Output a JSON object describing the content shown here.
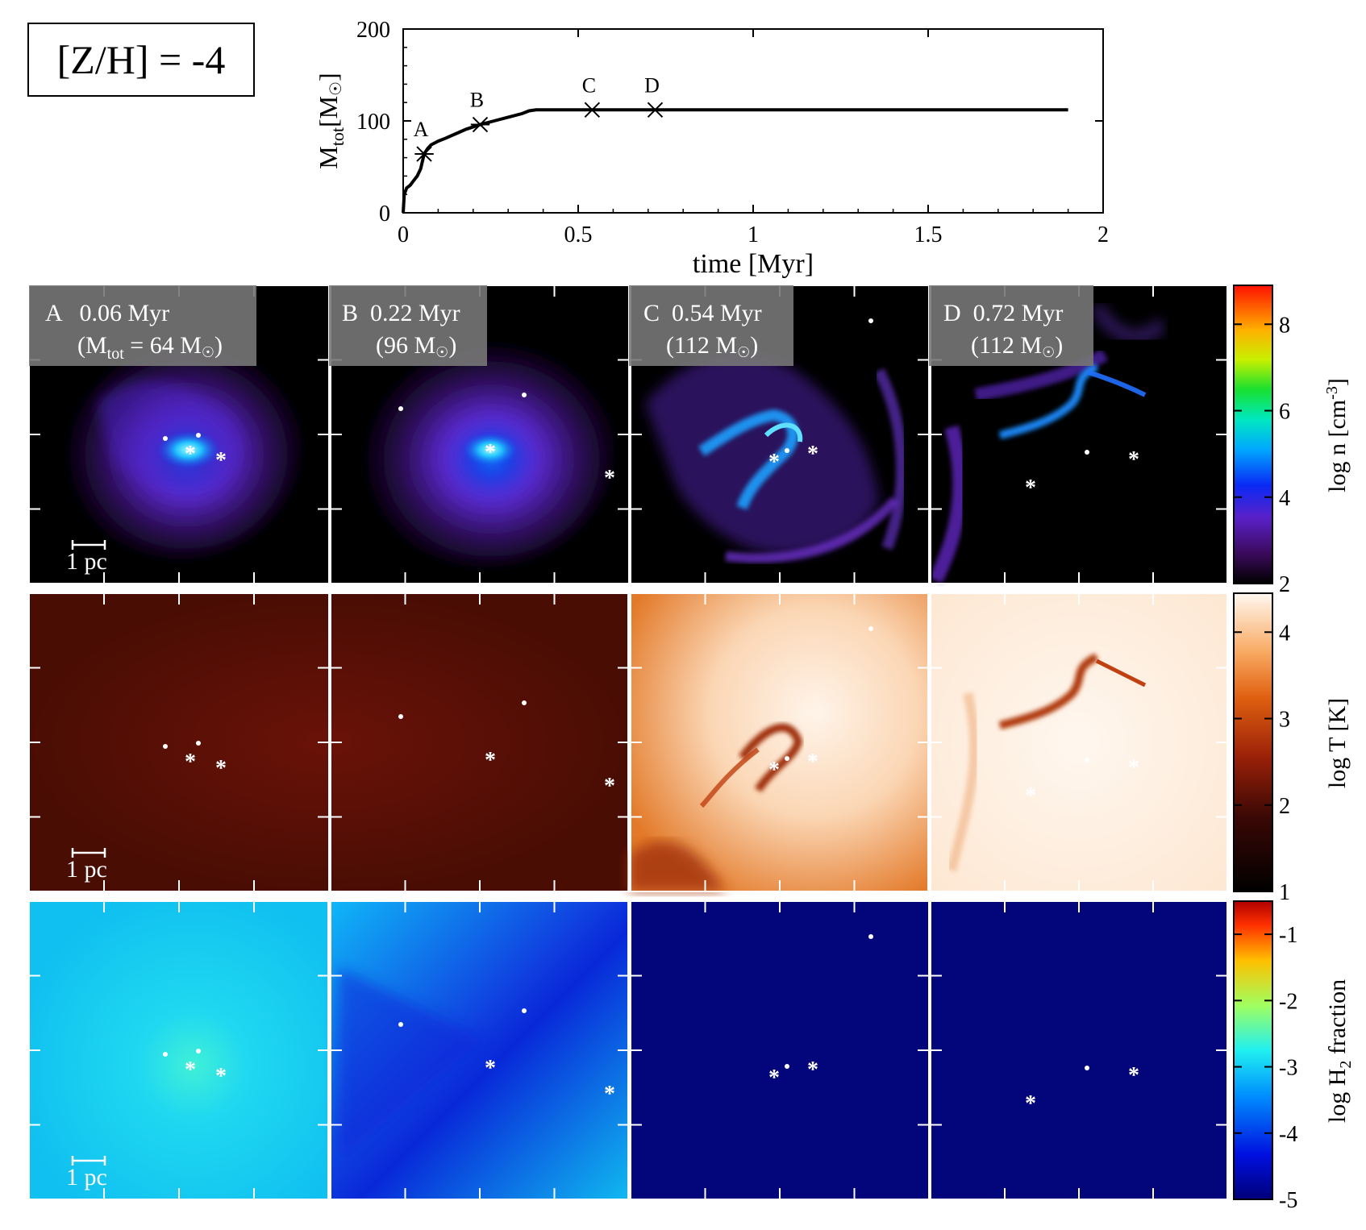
{
  "metallicity_label": "[Z/H] = -4",
  "chart_data": {
    "type": "line",
    "xlabel": "time [Myr]",
    "ylabel_main": "M",
    "ylabel_sub": "tot",
    "ylabel_unit": "[M",
    "ylabel_unit_close": "]",
    "xlim": [
      0,
      2
    ],
    "ylim": [
      0,
      200
    ],
    "xticks": [
      0,
      0.5,
      1,
      1.5,
      2
    ],
    "xtick_labels": [
      "0",
      "0.5",
      "1",
      "1.5",
      "2"
    ],
    "yticks": [
      0,
      100,
      200
    ],
    "ytick_labels": [
      "0",
      "100",
      "200"
    ],
    "series": [
      {
        "x": [
          0,
          0.003,
          0.01,
          0.02,
          0.03,
          0.04,
          0.05,
          0.06,
          0.07,
          0.08,
          0.09,
          0.1,
          0.12,
          0.15,
          0.18,
          0.22,
          0.26,
          0.3,
          0.34,
          0.36,
          0.38,
          0.45,
          0.54,
          0.6,
          0.72,
          1.0,
          1.5,
          1.7,
          1.9
        ],
        "y": [
          0,
          20,
          27,
          30,
          35,
          40,
          48,
          64,
          70,
          74,
          76,
          78,
          81,
          86,
          91,
          96,
          100,
          104,
          108,
          111,
          112,
          112,
          112,
          112,
          112,
          112,
          112,
          112,
          112
        ]
      }
    ],
    "markers": [
      {
        "label": "A",
        "x": 0.06,
        "y": 64
      },
      {
        "label": "B",
        "x": 0.22,
        "y": 96
      },
      {
        "label": "C",
        "x": 0.54,
        "y": 112
      },
      {
        "label": "D",
        "x": 0.72,
        "y": 112
      }
    ]
  },
  "panels": [
    {
      "id": "A",
      "time": "A   0.06 Myr",
      "mass_line_prefix": "(M",
      "mass_sub": "tot",
      "mass_line_suffix": " = 64 M",
      "mass_close": ")"
    },
    {
      "id": "B",
      "time": "B  0.22 Myr",
      "mass_line_prefix": "(96 M",
      "mass_close": ")"
    },
    {
      "id": "C",
      "time": "C  0.54 Myr",
      "mass_line_prefix": "(112 M",
      "mass_close": ")"
    },
    {
      "id": "D",
      "time": "D  0.72 Myr",
      "mass_line_prefix": "(112 M",
      "mass_close": ")"
    }
  ],
  "scale_bar": "1 pc",
  "colorbars": [
    {
      "label": "log n [cm",
      "label_sup": "-3",
      "label_close": "]",
      "ticks": [
        "2",
        "4",
        "6",
        "8"
      ],
      "tick_values": [
        2,
        4,
        6,
        8
      ],
      "range": [
        2,
        8.9
      ]
    },
    {
      "label": "log T [K]",
      "ticks": [
        "1",
        "2",
        "3",
        "4"
      ],
      "tick_values": [
        1,
        2,
        3,
        4
      ],
      "range": [
        1,
        4.45
      ]
    },
    {
      "label": "log H",
      "label_sub": "2",
      "label_suffix": " fraction",
      "ticks": [
        "-1",
        "-2",
        "-3",
        "-4",
        "-5"
      ],
      "tick_values": [
        -1,
        -2,
        -3,
        -4,
        -5
      ],
      "range": [
        -5,
        -0.5
      ]
    }
  ],
  "colors": {
    "density_bg": "#000000",
    "temp_cold": "#4a0d04",
    "temp_hot": "#fdf0e3",
    "h2_high": "#12c8ee",
    "h2_low": "#03067a"
  }
}
